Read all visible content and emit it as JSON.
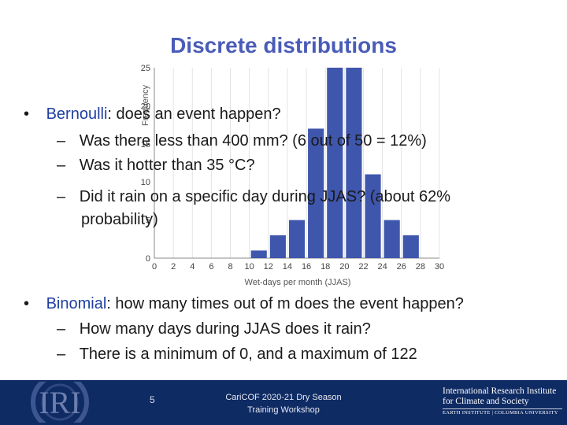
{
  "slide": {
    "title": "Discrete distributions",
    "bullets": [
      {
        "heading": "Bernoulli",
        "text": ": does an event happen?",
        "subs": [
          "Was there less than 400 mm? (6 out of 50 = 12%)",
          "Was it hotter than 35 °C?",
          "Did it rain on a specific day during JJAS? (about 62%",
          "probability)"
        ]
      },
      {
        "heading": "Binomial",
        "text": ": how many times out of m does the event happen?",
        "subs": [
          "How many days during JJAS does it rain?",
          "There is a minimum of 0, and a maximum of 122"
        ]
      }
    ],
    "dash": "–",
    "bullet_char": "•"
  },
  "footer": {
    "slide_number": "5",
    "event_line1": "CariCOF 2020-21 Dry Season",
    "event_line2": "Training Workshop",
    "institution_line1": "International Research Institute",
    "institution_line2": "for Climate and Society",
    "institution_line3": "EARTH INSTITUTE | COLUMBIA UNIVERSITY",
    "logo_text": "IRI"
  },
  "chart_data": {
    "type": "bar",
    "xlabel": "Wet-days per month (JJAS)",
    "ylabel": "Frequency",
    "xlim": [
      0,
      30
    ],
    "ylim": [
      0,
      25
    ],
    "x_ticks": [
      0,
      2,
      4,
      6,
      8,
      10,
      12,
      14,
      16,
      18,
      20,
      22,
      24,
      26,
      28,
      30
    ],
    "y_ticks": [
      0,
      5,
      10,
      15,
      20,
      25
    ],
    "bins": [
      {
        "x": 11,
        "value": 1
      },
      {
        "x": 13,
        "value": 3
      },
      {
        "x": 15,
        "value": 5
      },
      {
        "x": 17,
        "value": 17
      },
      {
        "x": 19,
        "value": 25
      },
      {
        "x": 21,
        "value": 25
      },
      {
        "x": 23,
        "value": 11
      },
      {
        "x": 25,
        "value": 5
      },
      {
        "x": 27,
        "value": 3
      }
    ],
    "bar_color": "#3f56ad"
  }
}
